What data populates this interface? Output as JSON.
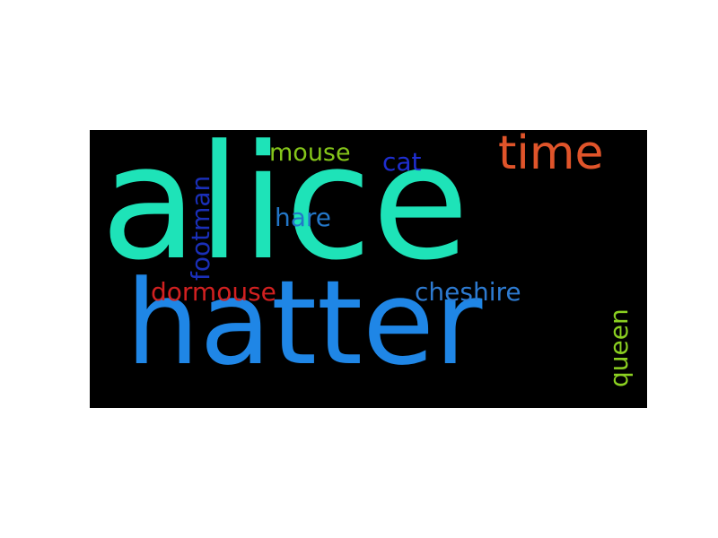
{
  "word_cloud": {
    "background_color": "#000000",
    "words": [
      {
        "text": "alice",
        "color": "#1ee3b8"
      },
      {
        "text": "hatter",
        "color": "#1f86e6"
      },
      {
        "text": "time",
        "color": "#e0542a"
      },
      {
        "text": "mouse",
        "color": "#85c61a"
      },
      {
        "text": "cat",
        "color": "#1e2ed0"
      },
      {
        "text": "footman",
        "color": "#1a2fb8"
      },
      {
        "text": "hare",
        "color": "#2377c8"
      },
      {
        "text": "dormouse",
        "color": "#d12020"
      },
      {
        "text": "cheshire",
        "color": "#2d7ad0"
      },
      {
        "text": "queen",
        "color": "#8bd021"
      }
    ]
  }
}
